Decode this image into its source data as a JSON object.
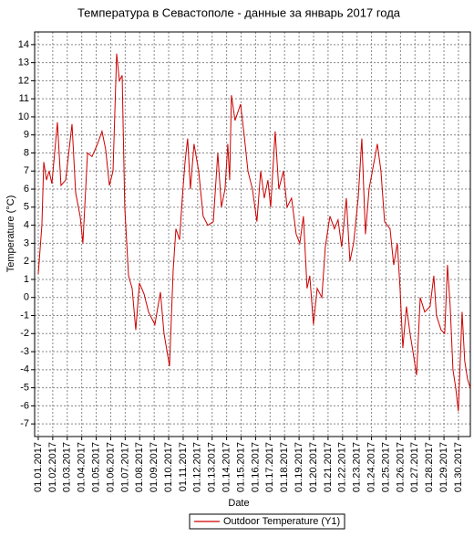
{
  "chart_data": {
    "type": "line",
    "title": "Температура в Севастополе - данные за январь 2017 года",
    "x_label": "Date",
    "y_label": "Temperature (°C)",
    "xlim": [
      0.75,
      30.82
    ],
    "ylim": [
      -7.7,
      14.7
    ],
    "xticks": [
      {
        "value": 1,
        "label": "01.01.2017"
      },
      {
        "value": 2,
        "label": "01.02.2017"
      },
      {
        "value": 3,
        "label": "01.03.2017"
      },
      {
        "value": 4,
        "label": "01.04.2017"
      },
      {
        "value": 5,
        "label": "01.05.2017"
      },
      {
        "value": 6,
        "label": "01.06.2017"
      },
      {
        "value": 7,
        "label": "01.07.2017"
      },
      {
        "value": 8,
        "label": "01.08.2017"
      },
      {
        "value": 9,
        "label": "01.09.2017"
      },
      {
        "value": 10,
        "label": "01.10.2017"
      },
      {
        "value": 11,
        "label": "01.11.2017"
      },
      {
        "value": 12,
        "label": "01.12.2017"
      },
      {
        "value": 13,
        "label": "01.13.2017"
      },
      {
        "value": 14,
        "label": "01.14.2017"
      },
      {
        "value": 15,
        "label": "01.15.2017"
      },
      {
        "value": 16,
        "label": "01.16.2017"
      },
      {
        "value": 17,
        "label": "01.17.2017"
      },
      {
        "value": 18,
        "label": "01.18.2017"
      },
      {
        "value": 19,
        "label": "01.19.2017"
      },
      {
        "value": 20,
        "label": "01.20.2017"
      },
      {
        "value": 21,
        "label": "01.21.2017"
      },
      {
        "value": 22,
        "label": "01.22.2017"
      },
      {
        "value": 23,
        "label": "01.23.2017"
      },
      {
        "value": 24,
        "label": "01.24.2017"
      },
      {
        "value": 25,
        "label": "01.25.2017"
      },
      {
        "value": 26,
        "label": "01.26.2017"
      },
      {
        "value": 27,
        "label": "01.27.2017"
      },
      {
        "value": 28,
        "label": "01.28.2017"
      },
      {
        "value": 29,
        "label": "01.29.2017"
      },
      {
        "value": 30,
        "label": "01.30.2017"
      }
    ],
    "yticks": [
      -7,
      -6,
      -5,
      -4,
      -3,
      -2,
      -1,
      0,
      1,
      2,
      3,
      4,
      5,
      6,
      7,
      8,
      9,
      10,
      11,
      12,
      13,
      14
    ],
    "grid": true,
    "x": [
      1.0,
      1.25,
      1.38,
      1.57,
      1.75,
      1.94,
      2.32,
      2.57,
      2.89,
      3.33,
      3.58,
      3.89,
      4.08,
      4.4,
      4.71,
      5.09,
      5.4,
      5.65,
      5.91,
      6.16,
      6.41,
      6.6,
      6.79,
      6.97,
      7.23,
      7.48,
      7.73,
      7.98,
      8.3,
      8.61,
      9.05,
      9.43,
      9.68,
      10.06,
      10.31,
      10.5,
      10.75,
      10.94,
      11.13,
      11.31,
      11.5,
      11.75,
      12.07,
      12.38,
      12.7,
      13.08,
      13.39,
      13.64,
      13.89,
      14.08,
      14.21,
      14.33,
      14.58,
      14.96,
      15.21,
      15.47,
      15.78,
      16.09,
      16.35,
      16.6,
      16.85,
      17.04,
      17.35,
      17.6,
      17.92,
      18.17,
      18.48,
      18.8,
      19.05,
      19.3,
      19.55,
      19.74,
      19.99,
      20.25,
      20.57,
      20.81,
      21.13,
      21.44,
      21.69,
      21.94,
      22.26,
      22.51,
      22.76,
      23.08,
      23.33,
      23.58,
      23.83,
      24.4,
      24.65,
      24.9,
      25.28,
      25.53,
      25.78,
      25.97,
      26.16,
      26.41,
      26.66,
      26.86,
      27.11,
      27.36,
      27.67,
      28.04,
      28.3,
      28.48,
      28.8,
      29.05,
      29.24,
      29.43,
      29.62,
      29.81,
      29.99,
      30.25,
      30.43,
      30.62,
      30.81
    ],
    "series": [
      {
        "name": "Outdoor Temperature (Y1)",
        "color": "#cc0000",
        "values": [
          1.3,
          4,
          7.5,
          6.5,
          7,
          6.3,
          9.7,
          6.2,
          6.5,
          9.6,
          5.8,
          4.5,
          3,
          8,
          7.8,
          8.5,
          9.2,
          8.2,
          6.2,
          7,
          13.5,
          12,
          12.3,
          5,
          1.2,
          0.5,
          -1.8,
          0.8,
          0.2,
          -0.8,
          -1.5,
          0.3,
          -2,
          -3.8,
          1.5,
          3.8,
          3.2,
          5.5,
          7.5,
          8.8,
          6,
          8.5,
          7,
          4.5,
          4,
          4.2,
          8,
          5,
          6,
          8.5,
          6.5,
          11.2,
          9.8,
          10.7,
          9,
          7,
          6,
          4.2,
          7,
          5.5,
          6.5,
          5,
          9.2,
          6,
          7,
          5,
          5.5,
          3.5,
          3,
          4.5,
          0.5,
          1.2,
          -1.5,
          0.5,
          0,
          2.8,
          4.5,
          3.8,
          4.3,
          2.8,
          5.5,
          2,
          3,
          5.5,
          8.8,
          3.5,
          6,
          8.5,
          7,
          4.2,
          3.8,
          1.8,
          3,
          0.5,
          -2.8,
          -0.5,
          -2,
          -3,
          -4.3,
          0,
          -0.8,
          -0.5,
          1.2,
          -1,
          -1.8,
          -2,
          1.8,
          -0.5,
          -4,
          -5,
          -6.3,
          -0.8,
          -3.5,
          -4.5,
          -5
        ]
      }
    ]
  }
}
